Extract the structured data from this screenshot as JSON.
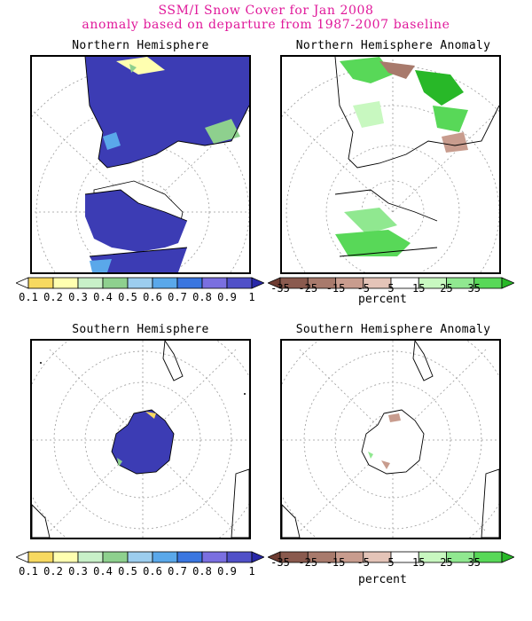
{
  "title_line1": "SSM/I Snow Cover for Jan 2008",
  "title_line2": "anomaly based on departure from 1987-2007 baseline",
  "panels": [
    {
      "title": "Northern Hemisphere"
    },
    {
      "title": "Northern Hemisphere Anomaly"
    },
    {
      "title": "Southern Hemisphere"
    },
    {
      "title": "Southern Hemisphere Anomaly"
    }
  ],
  "fraction_scale": {
    "labels": [
      "0.1",
      "0.2",
      "0.3",
      "0.4",
      "0.5",
      "0.6",
      "0.7",
      "0.8",
      "0.9",
      "1"
    ],
    "colors": [
      "#ffffff",
      "#f7d960",
      "#ffffb0",
      "#c8f0c8",
      "#8ed08e",
      "#9ccdee",
      "#5aa8ea",
      "#3a76e0",
      "#7a6fe0",
      "#5050c8",
      "#2828a8"
    ]
  },
  "anomaly_scale": {
    "labels": [
      "-35",
      "-25",
      "-15",
      "-5",
      "5",
      "15",
      "25",
      "35"
    ],
    "colors": [
      "#6e3c32",
      "#8a5a4e",
      "#a87a6c",
      "#c89c8e",
      "#e4c4b8",
      "#ffffff",
      "#c8f8c0",
      "#90e890",
      "#58d858",
      "#28b828"
    ],
    "unit": "percent"
  },
  "colors": {
    "title": "#e0189a",
    "snow": "#3c3cb4",
    "grid": "#888888"
  }
}
